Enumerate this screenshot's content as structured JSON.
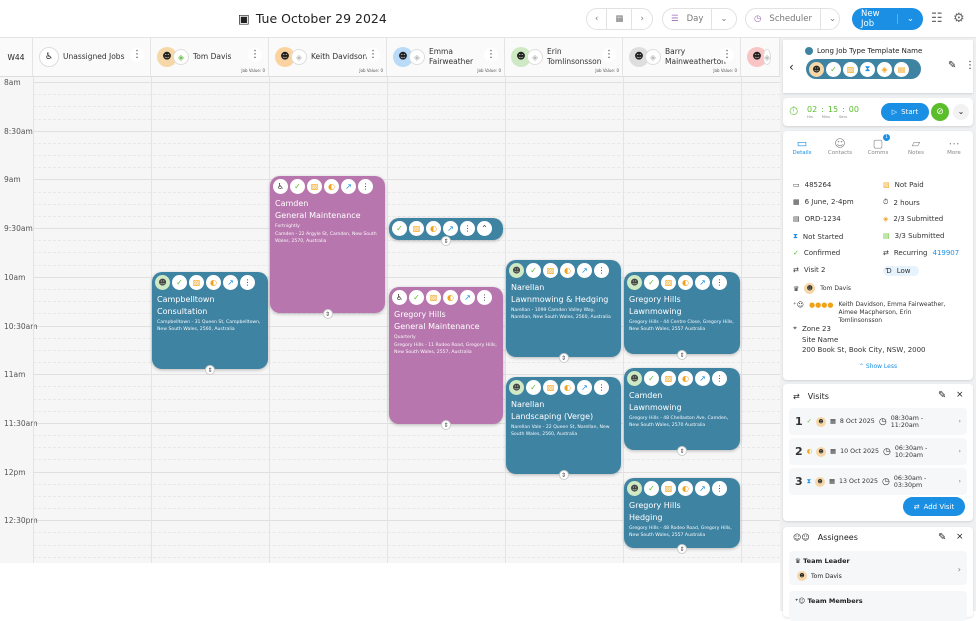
{
  "topbar": {
    "date": "Tue October 29 2024",
    "view": "Day",
    "mode": "Scheduler",
    "new_job": "New Job"
  },
  "week": "W44",
  "times": [
    "8am",
    "8:30am",
    "9am",
    "9:30am",
    "10am",
    "10:30am",
    "11am",
    "11:30am",
    "12pm",
    "12:30pm"
  ],
  "columns": [
    {
      "name": "Unassigned Jobs",
      "avatar": "unassigned"
    },
    {
      "name": "Tom Davis",
      "job_value": "Job Value: 0",
      "bg": "#f6d7a8",
      "shield": "#6cc04a"
    },
    {
      "name": "Keith Davidson",
      "job_value": "Job Value: 0",
      "bg": "#fbd3a0"
    },
    {
      "name": "Emma Fairweather",
      "job_value": "Job Value: 0",
      "bg": "#b9dbf7"
    },
    {
      "name": "Erin Tomlinsonsson",
      "job_value": "Job Value: 0",
      "bg": "#cfe9c4"
    },
    {
      "name": "Barry Mainweatherton",
      "job_value": "Job Value: 0",
      "bg": "#dedede"
    },
    {
      "name": "",
      "bg": "#f9c4c4"
    }
  ],
  "colors": {
    "teal": "#3f83a3",
    "purple": "#b876ae",
    "blue": "#1a8fe3",
    "green": "#5bbd2b",
    "orange": "#f0a31a"
  },
  "jobs": [
    {
      "col": 2,
      "color": "purple",
      "unassigned": true,
      "suburb": "Camden",
      "type": "General Maintenance",
      "freq": "Fortnightly",
      "address": "Camden - 22 Argyle St, Camden, New South Wales, 2570, Australia"
    },
    {
      "col": 3,
      "color": "teal",
      "collapsed": true
    },
    {
      "col": 1,
      "color": "teal",
      "suburb": "Campbelltown",
      "type": "Consultation",
      "address": "Campbelltown - 31 Queen St, Campbelltown, New South Wales, 2560, Australia"
    },
    {
      "col": 3,
      "color": "purple",
      "unassigned": true,
      "suburb": "Gregory Hills",
      "type": "General Maintenance",
      "freq": "Quarterly",
      "address": "Gregory Hills - 11 Rodeo Road, Gregory Hills, New South Wales, 2557, Australia"
    },
    {
      "col": 4,
      "color": "teal",
      "suburb": "Narellan",
      "type": "Lawnmowing & Hedging",
      "address": "Narellan - 1099 Camden Valley Way, Narellan, New South Wales, 2560, Australia"
    },
    {
      "col": 5,
      "color": "teal",
      "suburb": "Gregory Hills",
      "type": "Lawnmowing",
      "address": "Gregory Hills - 44 Centre Close, Gregory Hills, New South Wales, 2557 Australia"
    },
    {
      "col": 4,
      "color": "teal",
      "suburb": "Narellan",
      "type": "Landscaping (Verge)",
      "address": "Narellan Vale - 22 Queen St, Narellan, New South Wales, 2560, Australia"
    },
    {
      "col": 5,
      "color": "teal",
      "suburb": "Camden",
      "type": "Lawnmowing",
      "address": "Gregory Hills - 48 Chellaston Ave, Camden, New South Wales, 2570 Australia"
    },
    {
      "col": 5,
      "color": "teal",
      "suburb": "Gregory Hills",
      "type": "Hedging",
      "address": "Gregory Hills - 48 Rodeo Road, Gregory Hills, New South Wales, 2557 Australia"
    }
  ],
  "panel": {
    "title": "Long Job Type Template Name",
    "timer": {
      "hrs": "02",
      "mins": "15",
      "secs": "00",
      "hrs_label": "Hrs",
      "mins_label": "Mins",
      "secs_label": "Secs",
      "start": "Start"
    },
    "tabs": [
      {
        "label": "Details",
        "active": true
      },
      {
        "label": "Contacts"
      },
      {
        "label": "Comms",
        "badge": "1"
      },
      {
        "label": "Notes"
      },
      {
        "label": "More"
      }
    ],
    "details_left": [
      "485264",
      "6 June, 2-4pm",
      "ORD-1234",
      "Not Started",
      "Confirmed",
      "Visit 2"
    ],
    "details_right": [
      "Not Paid",
      "2 hours",
      "2/3 Submitted",
      "3/3 Submitted",
      "Recurring",
      "Low"
    ],
    "recurring_id": "419907",
    "leader": "Tom Davis",
    "members": "Keith Davidson, Emma Fairweather, Aimee Macpherson, Erin Tomlinsonsson",
    "zone": "Zone 23",
    "site": "Site Name",
    "address": "200 Book St, Book City, NSW, 2000",
    "show_less": "Show Less",
    "visits_title": "Visits",
    "visits": [
      {
        "num": "1",
        "date": "8 Oct 2025",
        "time": "08:30am - 11:20am"
      },
      {
        "num": "2",
        "date": "10 Oct 2025",
        "time": "06:30am - 10:20am"
      },
      {
        "num": "3",
        "date": "13 Oct 2025",
        "time": "06:30am - 03:30pm"
      }
    ],
    "add_visit": "Add Visit",
    "assignees_title": "Assignees",
    "team_leader": "Team Leader",
    "team_leader_name": "Tom Davis",
    "team_members": "Team Members"
  }
}
